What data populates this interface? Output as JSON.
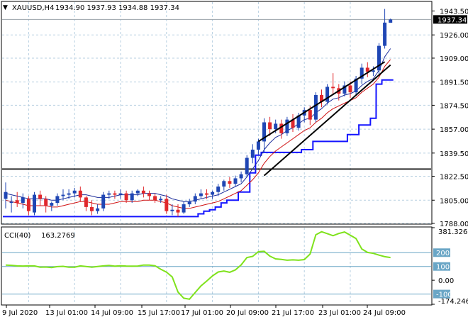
{
  "header": {
    "symbol": "XAUUSD,H4",
    "ohlc": "1934.90 1937.93 1934.88 1937.34"
  },
  "colors": {
    "background": "#ffffff",
    "grid": "#b7cfe1",
    "axis": "#000000",
    "candle_up": "#1f46b4",
    "candle_down": "#e0282c",
    "ma_fast": "#1a2b9a",
    "ma_slow": "#d01010",
    "stop_line": "#1414ff",
    "trendline": "#000000",
    "cci": "#7fe21c",
    "level_line": "#6aa6c6",
    "price_box": "#000000"
  },
  "chart_data": [
    {
      "type": "candlestick",
      "title": "XAUUSD,H4",
      "header_values": "1934.90 1937.93 1934.88 1937.34",
      "ylim": [
        1788.0,
        1950.0
      ],
      "y_ticks": [
        "1943.50",
        "1926.00",
        "1909.00",
        "1891.50",
        "1874.50",
        "1857.00",
        "1839.50",
        "1822.50",
        "1805.00",
        "1788.00"
      ],
      "x_ticks": [
        "9 Jul 2020",
        "13 Jul 01:00",
        "14 Jul 09:00",
        "15 Jul 17:00",
        "17 Jul 01:00",
        "20 Jul 09:00",
        "21 Jul 17:00",
        "23 Jul 01:00",
        "24 Jul 09:00"
      ],
      "current_price_label": "1937.34",
      "current_price": 1937.34,
      "horizontal_level": 1827.8,
      "grid": true,
      "candles": [
        {
          "o": 1806,
          "h": 1818,
          "c": 1811,
          "l": 1799
        },
        {
          "o": 1803,
          "h": 1808,
          "c": 1804,
          "l": 1796
        },
        {
          "o": 1805,
          "h": 1811,
          "c": 1803,
          "l": 1800
        },
        {
          "o": 1803,
          "h": 1810,
          "c": 1807,
          "l": 1799
        },
        {
          "o": 1806,
          "h": 1808,
          "c": 1797,
          "l": 1794
        },
        {
          "o": 1796,
          "h": 1811,
          "c": 1809,
          "l": 1794
        },
        {
          "o": 1809,
          "h": 1812,
          "c": 1806,
          "l": 1801
        },
        {
          "o": 1806,
          "h": 1808,
          "c": 1801,
          "l": 1796
        },
        {
          "o": 1801,
          "h": 1804,
          "c": 1803,
          "l": 1797
        },
        {
          "o": 1803,
          "h": 1810,
          "c": 1808,
          "l": 1801
        },
        {
          "o": 1808,
          "h": 1813,
          "c": 1809,
          "l": 1805
        },
        {
          "o": 1809,
          "h": 1813,
          "c": 1810,
          "l": 1806
        },
        {
          "o": 1810,
          "h": 1814,
          "c": 1812,
          "l": 1807
        },
        {
          "o": 1812,
          "h": 1815,
          "c": 1807,
          "l": 1804
        },
        {
          "o": 1807,
          "h": 1808,
          "c": 1800,
          "l": 1797
        },
        {
          "o": 1800,
          "h": 1805,
          "c": 1797,
          "l": 1794
        },
        {
          "o": 1797,
          "h": 1802,
          "c": 1799,
          "l": 1795
        },
        {
          "o": 1799,
          "h": 1811,
          "c": 1809,
          "l": 1797
        },
        {
          "o": 1809,
          "h": 1812,
          "c": 1810,
          "l": 1806
        },
        {
          "o": 1810,
          "h": 1812,
          "c": 1809,
          "l": 1806
        },
        {
          "o": 1809,
          "h": 1813,
          "c": 1810,
          "l": 1806
        },
        {
          "o": 1810,
          "h": 1812,
          "c": 1805,
          "l": 1803
        },
        {
          "o": 1805,
          "h": 1812,
          "c": 1810,
          "l": 1803
        },
        {
          "o": 1810,
          "h": 1813,
          "c": 1812,
          "l": 1808
        },
        {
          "o": 1812,
          "h": 1815,
          "c": 1810,
          "l": 1807
        },
        {
          "o": 1810,
          "h": 1812,
          "c": 1808,
          "l": 1805
        },
        {
          "o": 1808,
          "h": 1810,
          "c": 1805,
          "l": 1803
        },
        {
          "o": 1805,
          "h": 1808,
          "c": 1806,
          "l": 1803
        },
        {
          "o": 1806,
          "h": 1809,
          "c": 1797,
          "l": 1795
        },
        {
          "o": 1797,
          "h": 1802,
          "c": 1798,
          "l": 1794
        },
        {
          "o": 1798,
          "h": 1802,
          "c": 1796,
          "l": 1793
        },
        {
          "o": 1796,
          "h": 1804,
          "c": 1802,
          "l": 1795
        },
        {
          "o": 1802,
          "h": 1806,
          "c": 1804,
          "l": 1800
        },
        {
          "o": 1804,
          "h": 1810,
          "c": 1808,
          "l": 1802
        },
        {
          "o": 1808,
          "h": 1813,
          "c": 1810,
          "l": 1806
        },
        {
          "o": 1810,
          "h": 1813,
          "c": 1809,
          "l": 1806
        },
        {
          "o": 1809,
          "h": 1812,
          "c": 1811,
          "l": 1806
        },
        {
          "o": 1811,
          "h": 1817,
          "c": 1815,
          "l": 1808
        },
        {
          "o": 1815,
          "h": 1820,
          "c": 1819,
          "l": 1812
        },
        {
          "o": 1819,
          "h": 1822,
          "c": 1817,
          "l": 1814
        },
        {
          "o": 1817,
          "h": 1823,
          "c": 1821,
          "l": 1815
        },
        {
          "o": 1821,
          "h": 1826,
          "c": 1824,
          "l": 1818
        },
        {
          "o": 1824,
          "h": 1838,
          "c": 1836,
          "l": 1822
        },
        {
          "o": 1836,
          "h": 1846,
          "c": 1842,
          "l": 1832
        },
        {
          "o": 1842,
          "h": 1850,
          "c": 1848,
          "l": 1838
        },
        {
          "o": 1848,
          "h": 1865,
          "c": 1862,
          "l": 1840
        },
        {
          "o": 1862,
          "h": 1866,
          "c": 1857,
          "l": 1852
        },
        {
          "o": 1857,
          "h": 1864,
          "c": 1861,
          "l": 1854
        },
        {
          "o": 1861,
          "h": 1864,
          "c": 1854,
          "l": 1850
        },
        {
          "o": 1854,
          "h": 1866,
          "c": 1864,
          "l": 1852
        },
        {
          "o": 1864,
          "h": 1868,
          "c": 1858,
          "l": 1855
        },
        {
          "o": 1858,
          "h": 1869,
          "c": 1867,
          "l": 1856
        },
        {
          "o": 1867,
          "h": 1873,
          "c": 1871,
          "l": 1862
        },
        {
          "o": 1871,
          "h": 1874,
          "c": 1864,
          "l": 1860
        },
        {
          "o": 1864,
          "h": 1884,
          "c": 1882,
          "l": 1862
        },
        {
          "o": 1882,
          "h": 1886,
          "c": 1877,
          "l": 1873
        },
        {
          "o": 1877,
          "h": 1890,
          "c": 1888,
          "l": 1875
        },
        {
          "o": 1888,
          "h": 1898,
          "c": 1887,
          "l": 1882
        },
        {
          "o": 1887,
          "h": 1890,
          "c": 1883,
          "l": 1878
        },
        {
          "o": 1883,
          "h": 1892,
          "c": 1889,
          "l": 1881
        },
        {
          "o": 1889,
          "h": 1892,
          "c": 1884,
          "l": 1880
        },
        {
          "o": 1884,
          "h": 1896,
          "c": 1894,
          "l": 1882
        },
        {
          "o": 1894,
          "h": 1905,
          "c": 1902,
          "l": 1890
        },
        {
          "o": 1902,
          "h": 1906,
          "c": 1899,
          "l": 1895
        },
        {
          "o": 1899,
          "h": 1903,
          "c": 1900,
          "l": 1896
        },
        {
          "o": 1900,
          "h": 1920,
          "c": 1918,
          "l": 1897
        },
        {
          "o": 1918,
          "h": 1945,
          "c": 1935,
          "l": 1916
        },
        {
          "o": 1934.9,
          "h": 1937.9,
          "c": 1937.3,
          "l": 1934.9
        }
      ],
      "ma_fast": [
        1810,
        1809,
        1808,
        1807,
        1806,
        1806,
        1806,
        1806,
        1805,
        1805,
        1806,
        1807,
        1808,
        1809,
        1809,
        1808,
        1807,
        1807,
        1807,
        1808,
        1809,
        1809,
        1809,
        1809,
        1810,
        1810,
        1810,
        1809,
        1808,
        1806,
        1805,
        1804,
        1804,
        1805,
        1806,
        1807,
        1808,
        1809,
        1811,
        1813,
        1815,
        1817,
        1822,
        1828,
        1834,
        1842,
        1847,
        1851,
        1853,
        1856,
        1858,
        1861,
        1864,
        1865,
        1869,
        1872,
        1876,
        1879,
        1880,
        1882,
        1883,
        1885,
        1889,
        1892,
        1894,
        1900,
        1910,
        1916
      ],
      "ma_slow": [
        1805,
        1804,
        1803,
        1802,
        1801,
        1801,
        1801,
        1801,
        1800,
        1800,
        1801,
        1802,
        1803,
        1804,
        1804,
        1803,
        1802,
        1802,
        1802,
        1803,
        1804,
        1804,
        1804,
        1804,
        1805,
        1805,
        1805,
        1804,
        1803,
        1801,
        1800,
        1799,
        1799,
        1800,
        1801,
        1802,
        1803,
        1804,
        1806,
        1808,
        1810,
        1812,
        1816,
        1820,
        1825,
        1832,
        1837,
        1841,
        1844,
        1847,
        1850,
        1853,
        1856,
        1858,
        1862,
        1865,
        1869,
        1872,
        1874,
        1876,
        1878,
        1880,
        1884,
        1887,
        1890,
        1895,
        1903,
        1908
      ],
      "stop_line": [
        1793,
        1793,
        1793,
        1793,
        1793,
        1793,
        1793,
        1793,
        1793,
        1793,
        1793,
        1793,
        1793,
        1793,
        1793,
        1793,
        1793,
        1793,
        1793,
        1793,
        1793,
        1793,
        1793,
        1793,
        1793,
        1793,
        1793,
        1793,
        1793,
        1793,
        1793,
        1793,
        1793,
        1793,
        1795,
        1797,
        1798,
        1800,
        1803,
        1805,
        1805,
        1811,
        1811,
        1825,
        1838,
        1840,
        1840,
        1840,
        1840,
        1840,
        1840,
        1840,
        1842,
        1842,
        1848,
        1848,
        1848,
        1848,
        1848,
        1848,
        1853,
        1853,
        1860,
        1860,
        1865,
        1890,
        1893,
        1893
      ],
      "trendlines": [
        {
          "from_index": 44,
          "from_value": 1848.0,
          "to_index": 66,
          "to_value": 1906.3
        },
        {
          "from_index": 45,
          "from_value": 1823.0,
          "to_index": 67,
          "to_value": 1904.0
        }
      ]
    },
    {
      "type": "line",
      "title": "CCI(40)",
      "indicator_value": "163.2769",
      "ylim": [
        -174.2464,
        381.3261
      ],
      "y_ticks": [
        "381.3261",
        "200",
        "100",
        "0.00",
        "-100",
        "-174.2464"
      ],
      "levels": [
        200,
        100,
        -100
      ],
      "values": [
        110,
        108,
        104,
        103,
        104,
        104,
        95,
        96,
        92,
        99,
        101,
        95,
        95,
        104,
        100,
        95,
        100,
        104,
        107,
        102,
        105,
        103,
        102,
        103,
        110,
        110,
        105,
        80,
        59,
        24,
        -85,
        -130,
        -137,
        -89,
        -41,
        -6,
        31,
        60,
        67,
        58,
        75,
        111,
        165,
        173,
        207,
        210,
        175,
        155,
        151,
        145,
        148,
        145,
        150,
        190,
        330,
        352,
        338,
        323,
        339,
        350,
        327,
        302,
        227,
        202,
        195,
        182,
        171,
        165
      ]
    }
  ]
}
